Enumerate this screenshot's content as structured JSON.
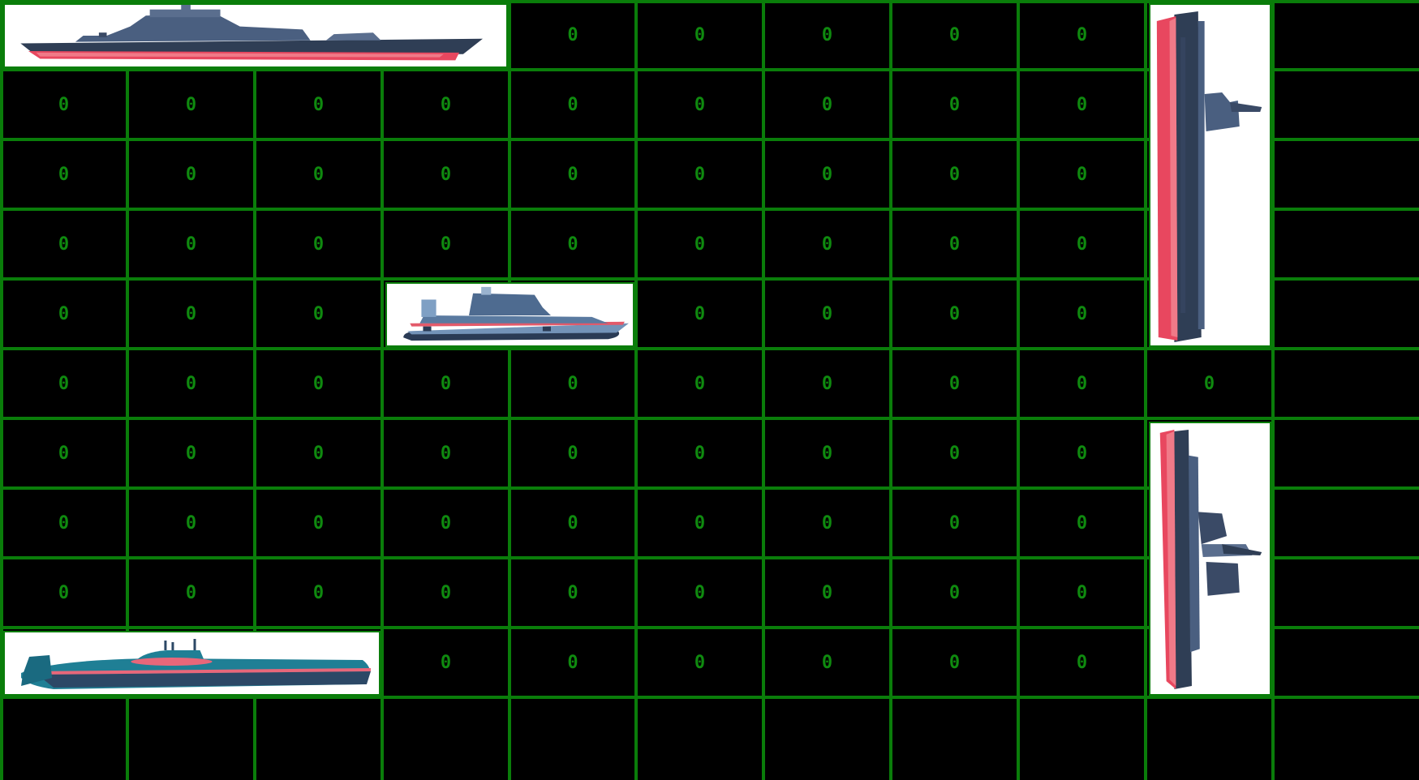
{
  "board": {
    "rows": 10,
    "cols": 10,
    "cell_value": "0",
    "grid_color": "#0a7d0a",
    "digit_color": "#0f8a0f",
    "ships": [
      {
        "name": "destroyer",
        "orientation": "horizontal",
        "row": 0,
        "col": 0,
        "length": 4
      },
      {
        "name": "hovercraft",
        "orientation": "horizontal",
        "row": 4,
        "col": 3,
        "length": 2
      },
      {
        "name": "submarine",
        "orientation": "horizontal",
        "row": 9,
        "col": 0,
        "length": 3
      },
      {
        "name": "aircraft-carrier",
        "orientation": "vertical",
        "row": 0,
        "col": 9,
        "length": 5
      },
      {
        "name": "cruiser",
        "orientation": "vertical",
        "row": 6,
        "col": 9,
        "length": 4
      }
    ]
  }
}
